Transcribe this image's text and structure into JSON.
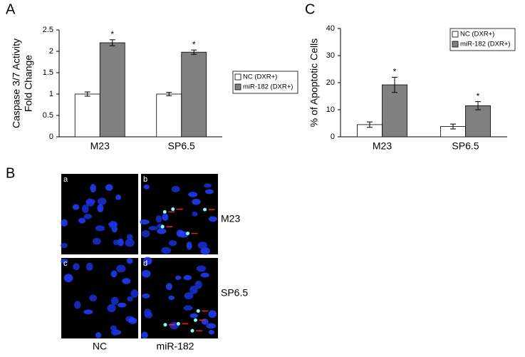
{
  "chart_data": [
    {
      "type": "bar",
      "panel_label": "A",
      "ylabel": [
        "Caspase 3/7 Activity",
        "Fold Change"
      ],
      "categories": [
        "M23",
        "SP6.5"
      ],
      "series": [
        {
          "name": "NC (DXR+)",
          "color": "#ffffff",
          "values": [
            1.0,
            1.0
          ],
          "errors": [
            0.05,
            0.04
          ]
        },
        {
          "name": "miR-182 (DXR+)",
          "color": "#808080",
          "values": [
            2.2,
            1.98
          ],
          "errors": [
            0.07,
            0.05
          ],
          "significance": [
            "*",
            "*"
          ]
        }
      ],
      "ylim": [
        0,
        2.5
      ],
      "yticks": [
        0,
        0.5,
        1,
        1.5,
        2,
        2.5
      ],
      "legend": "right"
    },
    {
      "type": "bar",
      "panel_label": "C",
      "ylabel": [
        "% of Apoptotic Cells"
      ],
      "categories": [
        "M23",
        "SP6.5"
      ],
      "series": [
        {
          "name": "NC (DXR+)",
          "color": "#ffffff",
          "values": [
            4.5,
            3.8
          ],
          "errors": [
            1.0,
            0.9
          ]
        },
        {
          "name": "miR-182 (DXR+)",
          "color": "#808080",
          "values": [
            19.2,
            11.5
          ],
          "errors": [
            2.8,
            1.5
          ],
          "significance": [
            "*",
            "*"
          ]
        }
      ],
      "ylim": [
        0,
        40
      ],
      "yticks": [
        0,
        10,
        20,
        30,
        40
      ],
      "legend": "upper right"
    }
  ],
  "figure_b": {
    "panel_label": "B",
    "image_labels": [
      "a",
      "b",
      "c",
      "d"
    ],
    "row_labels": [
      "M23",
      "SP6.5"
    ],
    "column_labels": [
      "NC",
      "miR-182"
    ]
  }
}
